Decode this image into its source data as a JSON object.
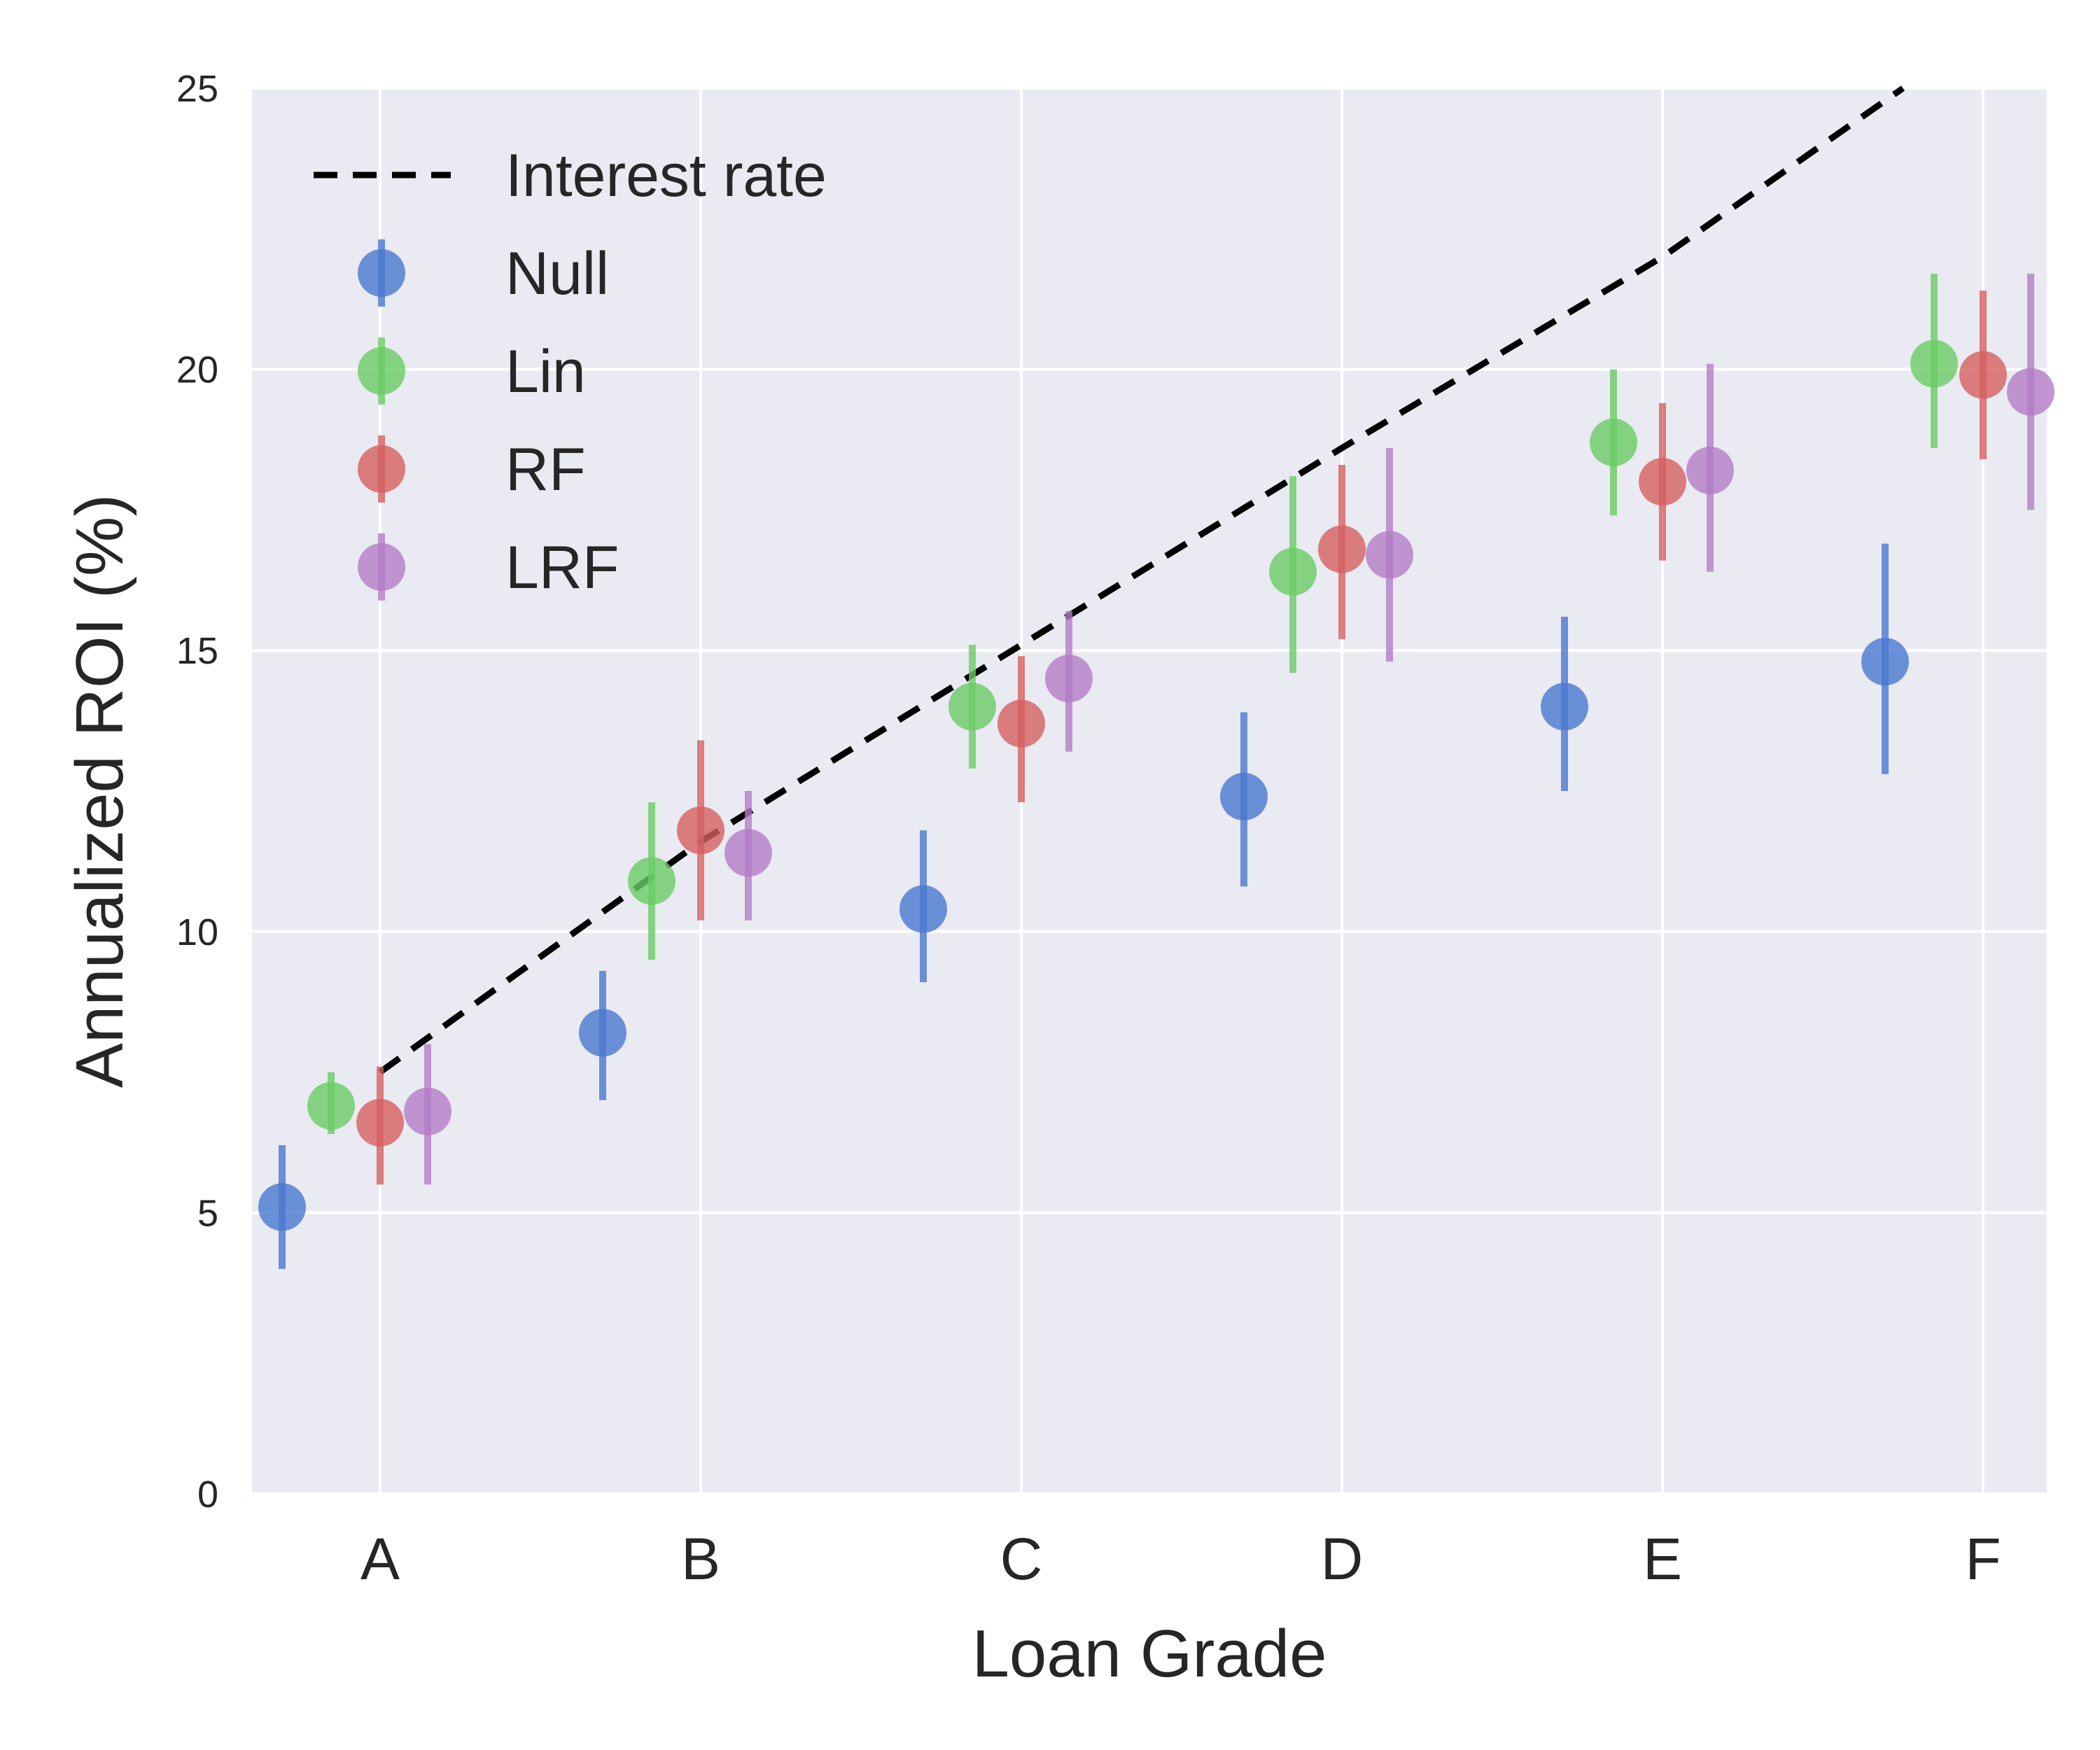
{
  "chart_data": {
    "type": "scatter",
    "xlabel": "Loan Grade",
    "ylabel": "Annualized ROI (%)",
    "categories": [
      "A",
      "B",
      "C",
      "D",
      "E",
      "F"
    ],
    "ylim": [
      0,
      25
    ],
    "yticks": [
      "0",
      "5",
      "10",
      "15",
      "20",
      "25"
    ],
    "grid": true,
    "legend_position": "top-left",
    "interest_rate": {
      "name": "Interest rate",
      "x": [
        "A",
        "B",
        "C",
        "D",
        "E",
        "F"
      ],
      "values": [
        7.5,
        11.6,
        15.1,
        18.6,
        22.0,
        26.0
      ],
      "style": "dashed",
      "color": "#000000"
    },
    "series": [
      {
        "name": "Null",
        "color": "#4878d0",
        "values": [
          5.1,
          8.2,
          10.4,
          12.4,
          14.0,
          14.8
        ],
        "err_low": [
          4.0,
          7.0,
          9.1,
          10.8,
          12.5,
          12.8
        ],
        "err_high": [
          6.2,
          9.3,
          11.8,
          13.9,
          15.6,
          16.9
        ]
      },
      {
        "name": "Lin",
        "color": "#6acc64",
        "values": [
          6.9,
          10.9,
          14.0,
          16.4,
          18.7,
          20.1
        ],
        "err_low": [
          6.4,
          9.5,
          12.9,
          14.6,
          17.4,
          18.6
        ],
        "err_high": [
          7.5,
          12.3,
          15.1,
          18.1,
          20.0,
          21.7
        ]
      },
      {
        "name": "RF",
        "color": "#d65f5f",
        "values": [
          6.6,
          11.8,
          13.7,
          16.8,
          18.0,
          19.9
        ],
        "err_low": [
          5.5,
          10.2,
          12.3,
          15.2,
          16.6,
          18.4
        ],
        "err_high": [
          7.6,
          13.4,
          14.9,
          18.3,
          19.4,
          21.4
        ]
      },
      {
        "name": "LRF",
        "color": "#b47cc7",
        "values": [
          6.8,
          11.4,
          14.5,
          16.7,
          18.2,
          19.6
        ],
        "err_low": [
          5.5,
          10.2,
          13.2,
          14.8,
          16.4,
          17.5
        ],
        "err_high": [
          8.0,
          12.5,
          15.7,
          18.6,
          20.1,
          21.7
        ]
      }
    ]
  }
}
